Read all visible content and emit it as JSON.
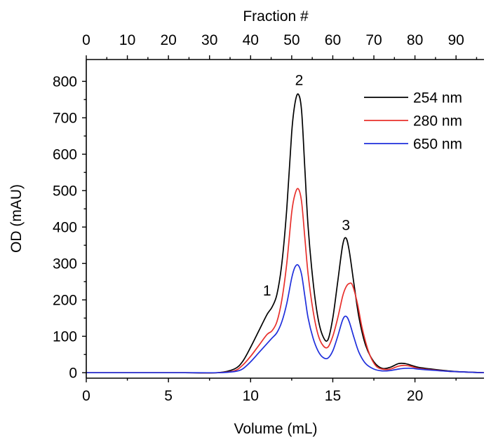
{
  "chart_data": {
    "type": "line",
    "xlabel": "Volume (mL)",
    "ylabel": "OD (mAU)",
    "top_axis_label": "Fraction #",
    "xlim": [
      0,
      24.2
    ],
    "ylim": [
      -15,
      860
    ],
    "x_ticks": [
      0,
      5,
      10,
      15,
      20
    ],
    "x_tick_labels": [
      "0",
      "5",
      "10",
      "15",
      "20"
    ],
    "y_ticks": [
      0,
      100,
      200,
      300,
      400,
      500,
      600,
      700,
      800
    ],
    "y_tick_labels": [
      "0",
      "100",
      "200",
      "300",
      "400",
      "500",
      "600",
      "700",
      "800"
    ],
    "top_ticks": [
      0,
      10,
      20,
      30,
      40,
      50,
      60,
      70,
      80,
      90
    ],
    "top_tick_labels": [
      "0",
      "10",
      "20",
      "30",
      "40",
      "50",
      "60",
      "70",
      "80",
      "90"
    ],
    "fractions_per_ml": 4,
    "legend_position": "top-right",
    "series": [
      {
        "name": "254 nm",
        "color": "#000000",
        "x": [
          0,
          2,
          4,
          6,
          8,
          9,
          9.5,
          10,
          10.5,
          11,
          11.3,
          11.6,
          11.9,
          12.2,
          12.5,
          12.7,
          12.9,
          13.1,
          13.3,
          13.5,
          13.8,
          14.1,
          14.4,
          14.7,
          15.0,
          15.3,
          15.6,
          15.8,
          16.0,
          16.3,
          16.6,
          17.0,
          17.5,
          18.0,
          18.5,
          19.0,
          19.4,
          19.8,
          20.2,
          21,
          22,
          23,
          24.2
        ],
        "y": [
          0,
          0,
          0,
          0,
          0,
          10,
          30,
          70,
          115,
          160,
          180,
          215,
          300,
          450,
          660,
          740,
          765,
          720,
          560,
          400,
          250,
          150,
          100,
          90,
          150,
          250,
          350,
          370,
          335,
          240,
          150,
          75,
          30,
          12,
          15,
          25,
          25,
          20,
          15,
          10,
          5,
          2,
          0
        ]
      },
      {
        "name": "280 nm",
        "color": "#e8302c",
        "x": [
          0,
          2,
          4,
          6,
          8,
          9,
          9.5,
          10,
          10.5,
          11,
          11.3,
          11.6,
          11.9,
          12.2,
          12.5,
          12.7,
          12.9,
          13.1,
          13.3,
          13.5,
          13.8,
          14.1,
          14.4,
          14.7,
          15.0,
          15.3,
          15.6,
          15.8,
          16.0,
          16.2,
          16.5,
          16.8,
          17.2,
          17.6,
          18.0,
          18.5,
          19.0,
          19.4,
          19.8,
          20.2,
          21,
          22,
          23,
          24.2
        ],
        "y": [
          0,
          0,
          0,
          0,
          0,
          5,
          20,
          45,
          75,
          105,
          115,
          140,
          200,
          300,
          440,
          490,
          505,
          470,
          370,
          270,
          170,
          105,
          75,
          70,
          100,
          150,
          210,
          235,
          245,
          240,
          190,
          120,
          55,
          20,
          10,
          10,
          18,
          20,
          17,
          12,
          8,
          4,
          2,
          0
        ]
      },
      {
        "name": "650 nm",
        "color": "#1f2fdc",
        "x": [
          0,
          2,
          4,
          6,
          8,
          9,
          9.5,
          10,
          10.5,
          11,
          11.3,
          11.6,
          11.9,
          12.2,
          12.5,
          12.7,
          12.9,
          13.1,
          13.3,
          13.5,
          13.8,
          14.1,
          14.4,
          14.7,
          15.0,
          15.3,
          15.6,
          15.8,
          16.0,
          16.3,
          16.6,
          17.0,
          17.5,
          18.0,
          18.5,
          19.0,
          19.4,
          19.8,
          20.2,
          21,
          22,
          23,
          24.2
        ],
        "y": [
          0,
          0,
          0,
          0,
          0,
          3,
          10,
          30,
          55,
          80,
          95,
          110,
          140,
          190,
          260,
          290,
          295,
          270,
          210,
          150,
          95,
          60,
          42,
          40,
          60,
          100,
          145,
          155,
          140,
          95,
          55,
          25,
          10,
          5,
          6,
          10,
          12,
          12,
          10,
          7,
          4,
          2,
          0
        ]
      }
    ],
    "annotations": [
      {
        "text": "1",
        "x": 11.0,
        "y": 212
      },
      {
        "text": "2",
        "x": 12.95,
        "y": 790
      },
      {
        "text": "3",
        "x": 15.8,
        "y": 392
      }
    ]
  }
}
